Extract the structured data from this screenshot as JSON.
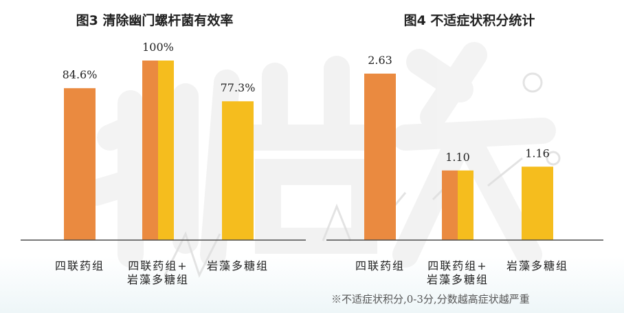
{
  "colors": {
    "orange": "#EA8A40",
    "yellow": "#F5BD1E",
    "axis": "#4d4d4d",
    "text": "#222222",
    "watermark": "#e6e6e6"
  },
  "watermark_icon": "new-nutrition-business-logo-icon",
  "footnote": "※不适症状积分,0-3分,分数越高症状越严重",
  "chart_data": [
    {
      "type": "bar",
      "title": "图3  清除幽门螺杆菌有效率",
      "categories": [
        "四联药组",
        "四联药组+岩藻多糖组",
        "岩藻多糖组"
      ],
      "category_lines": [
        [
          "四联药组"
        ],
        [
          "四联药组+",
          "岩藻多糖组"
        ],
        [
          "岩藻多糖组"
        ]
      ],
      "values": [
        84.6,
        100,
        77.3
      ],
      "value_labels": [
        "84.6%",
        "100%",
        "77.3%"
      ],
      "bar_colors": [
        [
          "#EA8A40"
        ],
        [
          "#EA8A40",
          "#F5BD1E"
        ],
        [
          "#F5BD1E"
        ]
      ],
      "ylim": [
        0,
        100
      ],
      "grid": false,
      "xlabel": "",
      "ylabel": ""
    },
    {
      "type": "bar",
      "title": "图4  不适症状积分统计",
      "categories": [
        "四联药组",
        "四联药组+岩藻多糖组",
        "岩藻多糖组"
      ],
      "category_lines": [
        [
          "四联药组"
        ],
        [
          "四联药组+",
          "岩藻多糖组"
        ],
        [
          "岩藻多糖组"
        ]
      ],
      "values": [
        2.63,
        1.1,
        1.16
      ],
      "value_labels": [
        "2.63",
        "1.10",
        "1.16"
      ],
      "bar_colors": [
        [
          "#EA8A40"
        ],
        [
          "#EA8A40",
          "#F5BD1E"
        ],
        [
          "#F5BD1E"
        ]
      ],
      "ylim": [
        0,
        2.63
      ],
      "grid": false,
      "xlabel": "",
      "ylabel": ""
    }
  ]
}
